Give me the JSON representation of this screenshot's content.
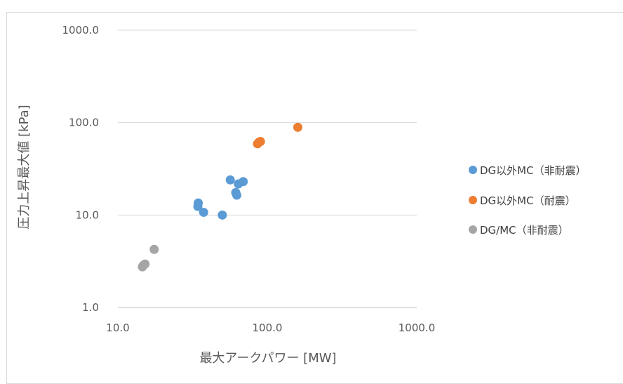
{
  "chart_data": {
    "type": "scatter",
    "title": "",
    "xlabel": "最大アークパワー [MW]",
    "ylabel": "圧力上昇最大値 [kPa]",
    "x_scale": "log",
    "y_scale": "log",
    "xlim": [
      10,
      1000
    ],
    "ylim": [
      1,
      1000
    ],
    "x_ticks": [
      10,
      100,
      1000
    ],
    "y_ticks": [
      1,
      10,
      100,
      1000
    ],
    "x_tick_labels": [
      "10.0",
      "100.0",
      "1000.0"
    ],
    "y_tick_labels": [
      "1.0",
      "10.0",
      "100.0",
      "1000.0"
    ],
    "grid": "horizontal",
    "legend_position": "right",
    "series": [
      {
        "name": "DG以外MC（非耐震）",
        "color": "#5B9BD5",
        "points": [
          {
            "x": 34.5,
            "y": 13.5
          },
          {
            "x": 34.3,
            "y": 12.4
          },
          {
            "x": 37.5,
            "y": 10.7
          },
          {
            "x": 50.0,
            "y": 10.0
          },
          {
            "x": 56.5,
            "y": 24.0
          },
          {
            "x": 61.5,
            "y": 17.5
          },
          {
            "x": 62.5,
            "y": 16.4
          },
          {
            "x": 64.0,
            "y": 21.7
          },
          {
            "x": 69.0,
            "y": 23.0
          }
        ]
      },
      {
        "name": "DG以外MC（耐震）",
        "color": "#ED7D31",
        "points": [
          {
            "x": 86.0,
            "y": 59.0
          },
          {
            "x": 88.0,
            "y": 61.5
          },
          {
            "x": 90.0,
            "y": 62.5
          },
          {
            "x": 160.0,
            "y": 89.0
          }
        ]
      },
      {
        "name": "DG/MC（非耐震）",
        "color": "#A5A5A5",
        "points": [
          {
            "x": 14.6,
            "y": 2.75
          },
          {
            "x": 14.8,
            "y": 2.85
          },
          {
            "x": 15.2,
            "y": 2.95
          },
          {
            "x": 17.5,
            "y": 4.25
          }
        ]
      }
    ]
  }
}
